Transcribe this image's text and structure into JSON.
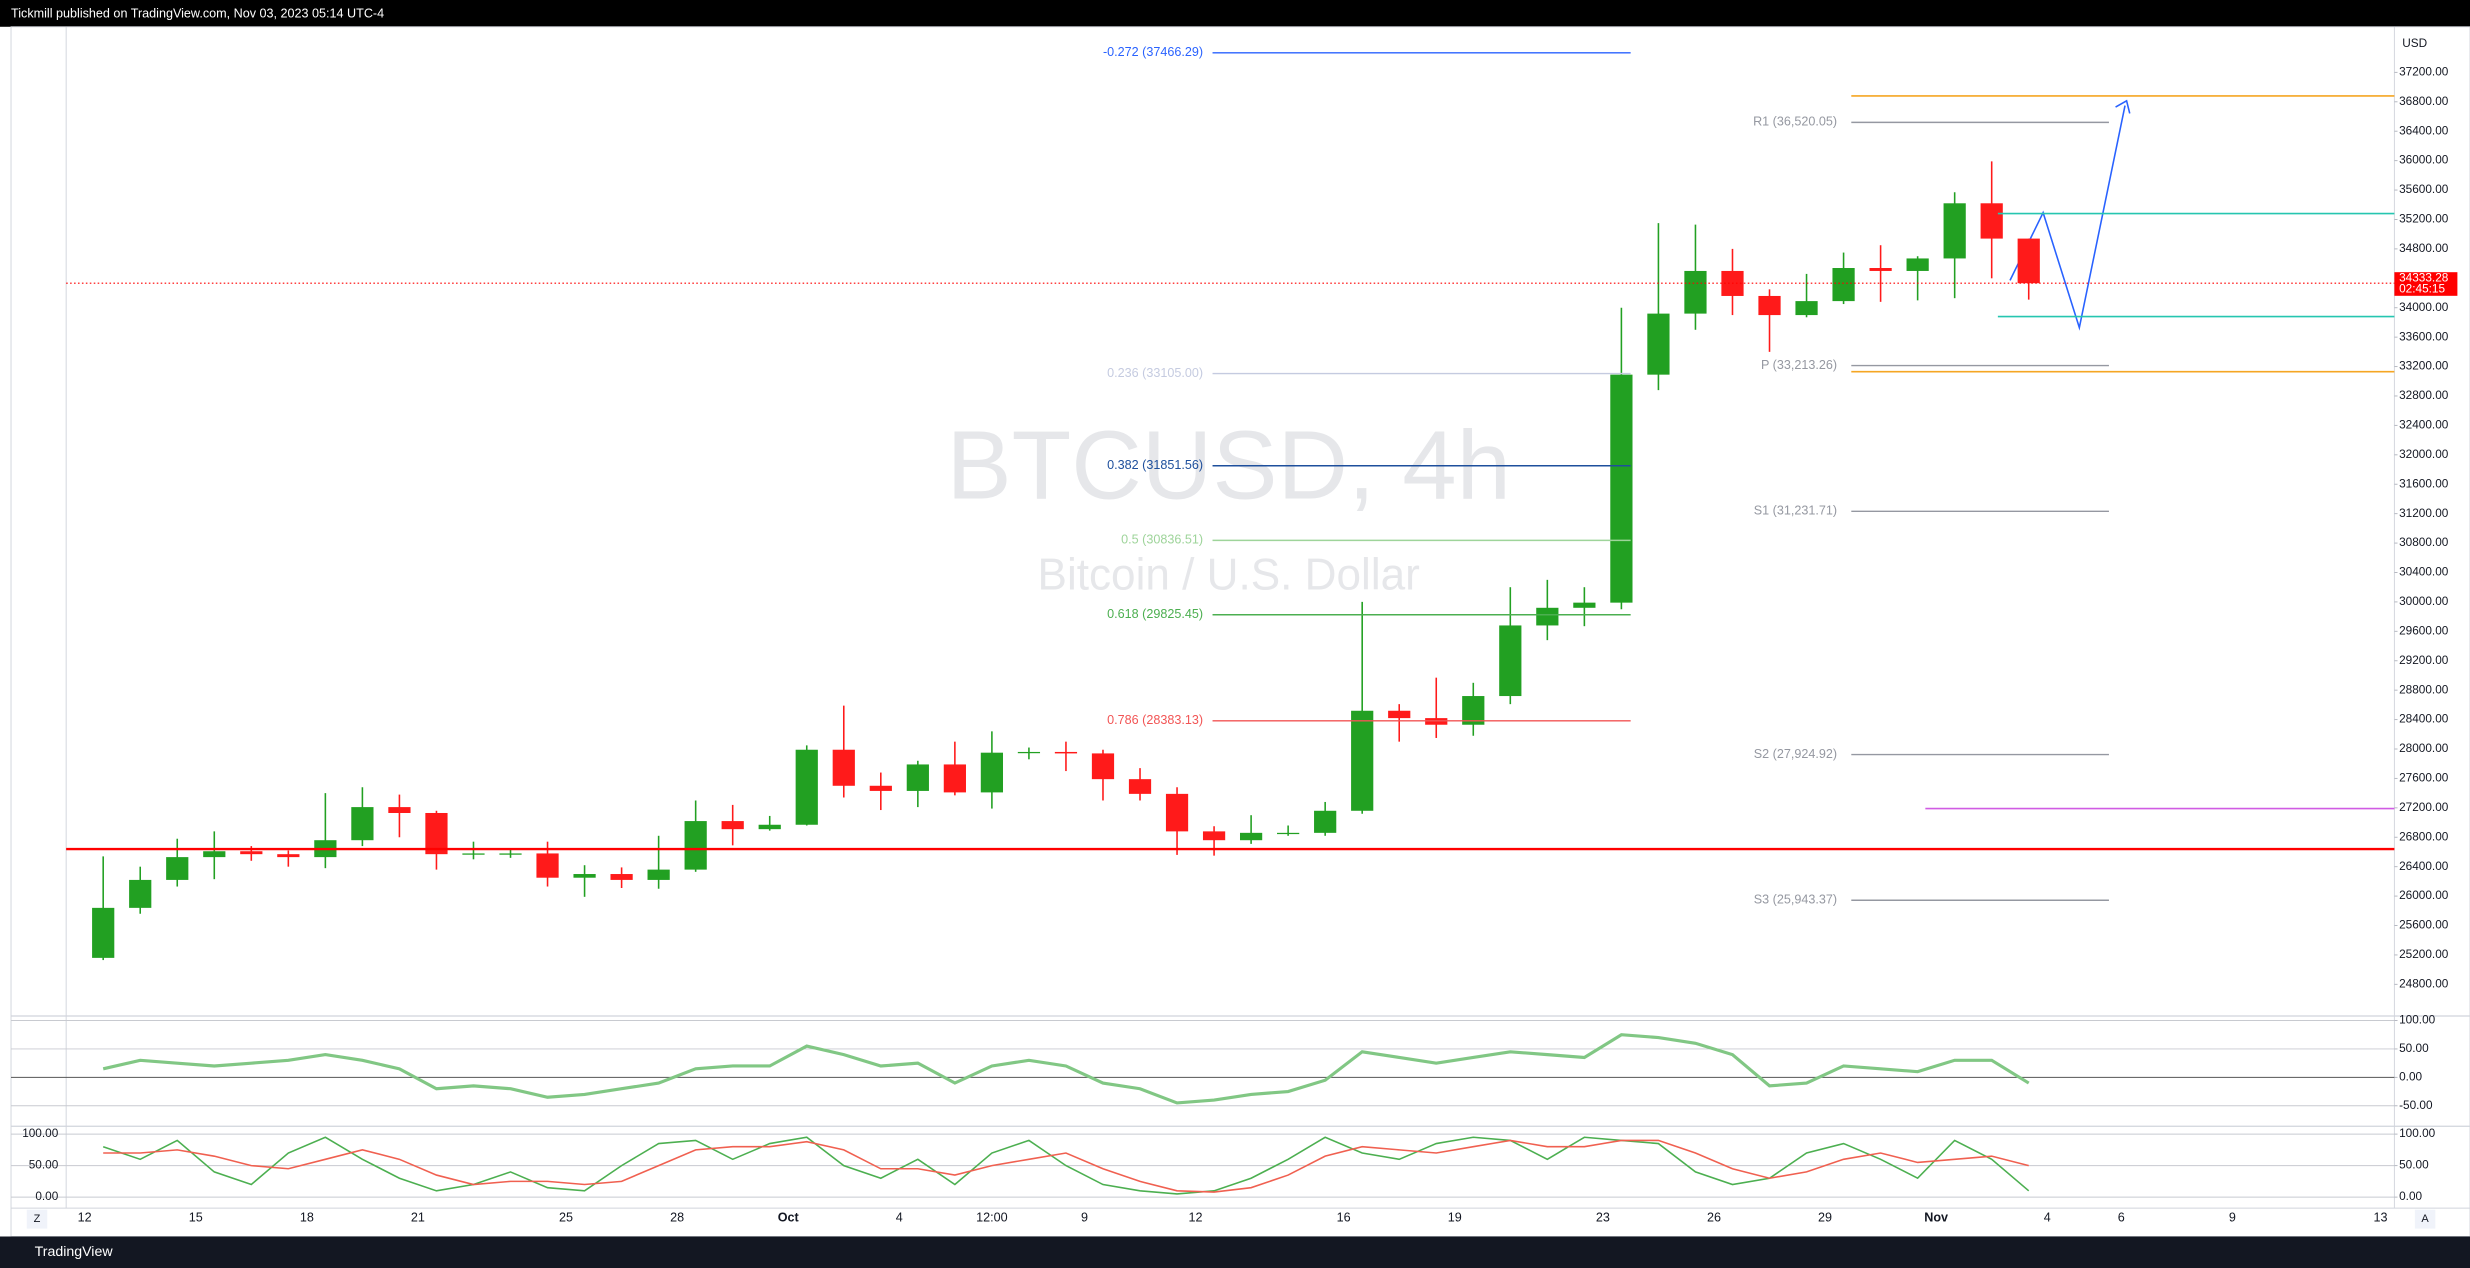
{
  "header": {
    "text": "Tickmill published on TradingView.com, Nov 03, 2023 05:14 UTC-4"
  },
  "footer": {
    "brand": "TradingView"
  },
  "controls": {
    "left": "Z",
    "right": "A"
  },
  "chart_data": [
    {
      "type": "candlestick",
      "title": "BTCUSD, 4h",
      "subtitle": "Bitcoin / U.S. Dollar",
      "currency": "USD",
      "up_color": "#22a022",
      "down_color": "#ff1a1a",
      "grid": false,
      "x": [
        "2023-09-12",
        "2023-09-13",
        "2023-09-14",
        "2023-09-15",
        "2023-09-16",
        "2023-09-17",
        "2023-09-18",
        "2023-09-19",
        "2023-09-20",
        "2023-09-21",
        "2023-09-22",
        "2023-09-23",
        "2023-09-24",
        "2023-09-25",
        "2023-09-26",
        "2023-09-27",
        "2023-09-28",
        "2023-09-29",
        "2023-09-30",
        "2023-10-01",
        "2023-10-02",
        "2023-10-03",
        "2023-10-04",
        "2023-10-05",
        "2023-10-06",
        "2023-10-07",
        "2023-10-08",
        "2023-10-09",
        "2023-10-10",
        "2023-10-11",
        "2023-10-12",
        "2023-10-13",
        "2023-10-14",
        "2023-10-15",
        "2023-10-16",
        "2023-10-17",
        "2023-10-18",
        "2023-10-19",
        "2023-10-20",
        "2023-10-21",
        "2023-10-22",
        "2023-10-23",
        "2023-10-24",
        "2023-10-25",
        "2023-10-26",
        "2023-10-27",
        "2023-10-28",
        "2023-10-29",
        "2023-10-30",
        "2023-10-31",
        "2023-11-01",
        "2023-11-02",
        "2023-11-03"
      ],
      "open": [
        25160,
        25840,
        26220,
        26530,
        26610,
        26570,
        26530,
        26760,
        27210,
        27130,
        26570,
        26580,
        26580,
        26250,
        26300,
        26220,
        26360,
        27020,
        26910,
        26970,
        27990,
        27500,
        27430,
        27790,
        27410,
        27950,
        27960,
        27940,
        27590,
        27390,
        26880,
        26760,
        26860,
        26860,
        27160,
        28520,
        28420,
        28330,
        28720,
        29680,
        29920,
        29990,
        33090,
        33920,
        34500,
        34160,
        33900,
        34090,
        34540,
        34500,
        34670,
        35420,
        34940
      ],
      "high": [
        26540,
        26400,
        26780,
        26880,
        26680,
        26620,
        27400,
        27480,
        27380,
        27160,
        26740,
        26630,
        26740,
        26420,
        26390,
        26820,
        27300,
        27240,
        27090,
        28050,
        28590,
        27680,
        27840,
        28100,
        28240,
        28020,
        28100,
        27990,
        27740,
        27480,
        26950,
        27100,
        26960,
        27280,
        30000,
        28610,
        28970,
        28900,
        30200,
        30300,
        30200,
        34000,
        35150,
        35130,
        34800,
        34250,
        34460,
        34750,
        34850,
        34700,
        35570,
        35990,
        34940
      ],
      "low": [
        25130,
        25760,
        26130,
        26230,
        26480,
        26400,
        26380,
        26680,
        26800,
        26360,
        26500,
        26520,
        26130,
        25990,
        26110,
        26100,
        26330,
        26690,
        26890,
        26960,
        27340,
        27170,
        27210,
        27370,
        27190,
        27860,
        27700,
        27300,
        27300,
        26560,
        26550,
        26710,
        26820,
        26820,
        27120,
        28100,
        28150,
        28180,
        28610,
        29480,
        29670,
        29900,
        32880,
        33700,
        33900,
        33400,
        33870,
        34050,
        34080,
        34100,
        34130,
        34400,
        34110
      ],
      "close": [
        25840,
        26220,
        26530,
        26610,
        26570,
        26530,
        26760,
        27210,
        27130,
        26570,
        26580,
        26580,
        26250,
        26300,
        26220,
        26360,
        27020,
        26910,
        26970,
        27990,
        27500,
        27430,
        27790,
        27410,
        27950,
        27960,
        27940,
        27590,
        27390,
        26880,
        26760,
        26860,
        26860,
        27160,
        28520,
        28420,
        28330,
        28720,
        29680,
        29920,
        29990,
        33090,
        33920,
        34500,
        34160,
        33900,
        34090,
        34540,
        34500,
        34670,
        35420,
        34940,
        34333.28
      ],
      "xlim": [
        "2023-09-11 12:00",
        "2023-11-13 09:00"
      ],
      "xticks": [
        {
          "value": "2023-09-12",
          "label": "12"
        },
        {
          "value": "2023-09-15",
          "label": "15"
        },
        {
          "value": "2023-09-18",
          "label": "18"
        },
        {
          "value": "2023-09-21",
          "label": "21"
        },
        {
          "value": "2023-09-25",
          "label": "25"
        },
        {
          "value": "2023-09-28",
          "label": "28"
        },
        {
          "value": "2023-10-01",
          "label": "Oct"
        },
        {
          "value": "2023-10-04",
          "label": "4"
        },
        {
          "value": "2023-10-06 12:00",
          "label": "12:00"
        },
        {
          "value": "2023-10-09",
          "label": "9"
        },
        {
          "value": "2023-10-12",
          "label": "12"
        },
        {
          "value": "2023-10-16",
          "label": "16"
        },
        {
          "value": "2023-10-19",
          "label": "19"
        },
        {
          "value": "2023-10-23",
          "label": "23"
        },
        {
          "value": "2023-10-26",
          "label": "26"
        },
        {
          "value": "2023-10-29",
          "label": "29"
        },
        {
          "value": "2023-11-01",
          "label": "Nov"
        },
        {
          "value": "2023-11-04",
          "label": "4"
        },
        {
          "value": "2023-11-06",
          "label": "6"
        },
        {
          "value": "2023-11-09",
          "label": "9"
        },
        {
          "value": "2023-11-13",
          "label": "13"
        }
      ],
      "ylim": [
        24370,
        37820
      ],
      "yticks": [
        {
          "value": 24800,
          "label": "24800.00"
        },
        {
          "value": 25200,
          "label": "25200.00"
        },
        {
          "value": 25600,
          "label": "25600.00"
        },
        {
          "value": 26000,
          "label": "26000.00"
        },
        {
          "value": 26400,
          "label": "26400.00"
        },
        {
          "value": 26800,
          "label": "26800.00"
        },
        {
          "value": 27200,
          "label": "27200.00"
        },
        {
          "value": 27600,
          "label": "27600.00"
        },
        {
          "value": 28000,
          "label": "28000.00"
        },
        {
          "value": 28400,
          "label": "28400.00"
        },
        {
          "value": 28800,
          "label": "28800.00"
        },
        {
          "value": 29200,
          "label": "29200.00"
        },
        {
          "value": 29600,
          "label": "29600.00"
        },
        {
          "value": 30000,
          "label": "30000.00"
        },
        {
          "value": 30400,
          "label": "30400.00"
        },
        {
          "value": 30800,
          "label": "30800.00"
        },
        {
          "value": 31200,
          "label": "31200.00"
        },
        {
          "value": 31600,
          "label": "31600.00"
        },
        {
          "value": 32000,
          "label": "32000.00"
        },
        {
          "value": 32400,
          "label": "32400.00"
        },
        {
          "value": 32800,
          "label": "32800.00"
        },
        {
          "value": 33200,
          "label": "33200.00"
        },
        {
          "value": 33600,
          "label": "33600.00"
        },
        {
          "value": 34000,
          "label": "34000.00"
        },
        {
          "value": 34400,
          "label": "34400.00"
        },
        {
          "value": 34800,
          "label": "34800.00"
        },
        {
          "value": 35200,
          "label": "35200.00"
        },
        {
          "value": 35600,
          "label": "35600.00"
        },
        {
          "value": 36000,
          "label": "36000.00"
        },
        {
          "value": 36400,
          "label": "36400.00"
        },
        {
          "value": 36800,
          "label": "36800.00"
        },
        {
          "value": 37200,
          "label": "37200.00"
        }
      ],
      "last_price": 34333.28,
      "last_color": "#ff0000",
      "countdown": "02:45:15",
      "fib": {
        "x": [
          "2023-10-12 11:00",
          "2023-10-23 18:00"
        ],
        "levels": [
          {
            "label": "-0.272 (37466.29)",
            "value": 37466.29,
            "color": "#2962ff"
          },
          {
            "label": "0.236 (33105.00)",
            "value": 33105.0,
            "color": "#c5cbe0"
          },
          {
            "label": "0.382 (31851.56)",
            "value": 31851.56,
            "color": "#1e4f9c"
          },
          {
            "label": "0.5 (30836.51)",
            "value": 30836.51,
            "color": "#9ed49a"
          },
          {
            "label": "0.618 (29825.45)",
            "value": 29825.45,
            "color": "#4caf50"
          },
          {
            "label": "0.786 (28383.13)",
            "value": 28383.13,
            "color": "#f25555"
          }
        ]
      },
      "pivots": {
        "x": [
          "2023-10-29 17:00",
          "2023-11-05 16:00"
        ],
        "color": "#9598a1",
        "levels": [
          {
            "label": "R1 (36,520.05)",
            "value": 36520.05
          },
          {
            "label": "P (33,213.26)",
            "value": 33213.26
          },
          {
            "label": "S1 (31,231.71)",
            "value": 31231.71
          },
          {
            "label": "S2 (27,924.92)",
            "value": 27924.92
          },
          {
            "label": "S3 (25,943.37)",
            "value": 25943.37
          }
        ]
      },
      "lines": [
        {
          "value": 36880,
          "color": "#f5a623",
          "x": [
            "2023-10-29 17:00",
            "2023-11-13 09:00"
          ],
          "width": 1,
          "style": "solid"
        },
        {
          "value": 33130,
          "color": "#f5a623",
          "x": [
            "2023-10-29 17:00",
            "2023-11-13 09:00"
          ],
          "width": 1,
          "style": "solid"
        },
        {
          "value": 35280,
          "color": "#26c6b0",
          "x": [
            "2023-11-02 16:00",
            "2023-11-13 09:00"
          ],
          "width": 1,
          "style": "solid"
        },
        {
          "value": 33880,
          "color": "#26c6b0",
          "x": [
            "2023-11-02 16:00",
            "2023-11-13 09:00"
          ],
          "width": 1,
          "style": "solid"
        },
        {
          "value": 27190,
          "color": "#d05ce3",
          "x": [
            "2023-10-31 17:00",
            "2023-11-13 09:00"
          ],
          "width": 1,
          "style": "solid"
        },
        {
          "value": 26640,
          "color": "#ff0000",
          "x": [
            "2023-09-11 12:00",
            "2023-11-13 09:00"
          ],
          "width": 1.5,
          "style": "solid"
        },
        {
          "value": 34333.28,
          "color": "#ff0000",
          "x": [
            "2023-09-11 12:00",
            "2023-11-13 09:00"
          ],
          "width": 0.7,
          "style": "dotted"
        }
      ]
    },
    {
      "type": "line",
      "grid": true,
      "x": [
        "2023-09-12",
        "2023-09-13",
        "2023-09-14",
        "2023-09-15",
        "2023-09-16",
        "2023-09-17",
        "2023-09-18",
        "2023-09-19",
        "2023-09-20",
        "2023-09-21",
        "2023-09-22",
        "2023-09-23",
        "2023-09-24",
        "2023-09-25",
        "2023-09-26",
        "2023-09-27",
        "2023-09-28",
        "2023-09-29",
        "2023-09-30",
        "2023-10-01",
        "2023-10-02",
        "2023-10-03",
        "2023-10-04",
        "2023-10-05",
        "2023-10-06",
        "2023-10-07",
        "2023-10-08",
        "2023-10-09",
        "2023-10-10",
        "2023-10-11",
        "2023-10-12",
        "2023-10-13",
        "2023-10-14",
        "2023-10-15",
        "2023-10-16",
        "2023-10-17",
        "2023-10-18",
        "2023-10-19",
        "2023-10-20",
        "2023-10-21",
        "2023-10-22",
        "2023-10-23",
        "2023-10-24",
        "2023-10-25",
        "2023-10-26",
        "2023-10-27",
        "2023-10-28",
        "2023-10-29",
        "2023-10-30",
        "2023-10-31",
        "2023-11-01",
        "2023-11-02",
        "2023-11-03"
      ],
      "xlim": [
        "2023-09-11 12:00",
        "2023-11-13 09:00"
      ],
      "ylim": [
        -86,
        108
      ],
      "yticks": [
        {
          "value": 100,
          "label": "100.00"
        },
        {
          "value": 50,
          "label": "50.00"
        },
        {
          "value": 0,
          "label": "0.00"
        },
        {
          "value": -50,
          "label": "-50.00"
        }
      ],
      "series": [
        {
          "color": "#81c784",
          "values": [
            15,
            30,
            25,
            20,
            25,
            30,
            40,
            30,
            15,
            -20,
            -15,
            -20,
            -35,
            -30,
            -20,
            -10,
            15,
            20,
            20,
            55,
            40,
            20,
            25,
            -10,
            20,
            30,
            20,
            -10,
            -20,
            -45,
            -40,
            -30,
            -25,
            -5,
            45,
            35,
            25,
            35,
            45,
            40,
            35,
            75,
            70,
            60,
            40,
            -15,
            -10,
            20,
            15,
            10,
            30,
            30,
            -10
          ]
        }
      ]
    },
    {
      "type": "line",
      "grid": true,
      "x": [
        "2023-09-12",
        "2023-09-13",
        "2023-09-14",
        "2023-09-15",
        "2023-09-16",
        "2023-09-17",
        "2023-09-18",
        "2023-09-19",
        "2023-09-20",
        "2023-09-21",
        "2023-09-22",
        "2023-09-23",
        "2023-09-24",
        "2023-09-25",
        "2023-09-26",
        "2023-09-27",
        "2023-09-28",
        "2023-09-29",
        "2023-09-30",
        "2023-10-01",
        "2023-10-02",
        "2023-10-03",
        "2023-10-04",
        "2023-10-05",
        "2023-10-06",
        "2023-10-07",
        "2023-10-08",
        "2023-10-09",
        "2023-10-10",
        "2023-10-11",
        "2023-10-12",
        "2023-10-13",
        "2023-10-14",
        "2023-10-15",
        "2023-10-16",
        "2023-10-17",
        "2023-10-18",
        "2023-10-19",
        "2023-10-20",
        "2023-10-21",
        "2023-10-22",
        "2023-10-23",
        "2023-10-24",
        "2023-10-25",
        "2023-10-26",
        "2023-10-27",
        "2023-10-28",
        "2023-10-29",
        "2023-10-30",
        "2023-10-31",
        "2023-11-01",
        "2023-11-02",
        "2023-11-03"
      ],
      "xlim": [
        "2023-09-11 12:00",
        "2023-11-13 09:00"
      ],
      "ylim": [
        -17.5,
        112.5
      ],
      "yticks": [
        {
          "value": 100,
          "label": "100.00"
        },
        {
          "value": 50,
          "label": "50.00"
        },
        {
          "value": 0,
          "label": "0.00"
        }
      ],
      "series": [
        {
          "color": "#4caf50",
          "values": [
            80,
            60,
            90,
            40,
            20,
            70,
            95,
            60,
            30,
            10,
            20,
            40,
            15,
            10,
            50,
            85,
            90,
            60,
            85,
            95,
            50,
            30,
            60,
            20,
            70,
            90,
            50,
            20,
            10,
            5,
            10,
            30,
            60,
            95,
            70,
            60,
            85,
            95,
            90,
            60,
            95,
            90,
            85,
            40,
            20,
            30,
            70,
            85,
            60,
            30,
            90,
            60,
            10
          ]
        },
        {
          "color": "#f06050",
          "values": [
            70,
            70,
            75,
            65,
            50,
            45,
            60,
            75,
            60,
            35,
            20,
            25,
            25,
            20,
            25,
            50,
            75,
            80,
            80,
            88,
            75,
            45,
            45,
            35,
            50,
            60,
            70,
            45,
            25,
            10,
            8,
            15,
            35,
            65,
            80,
            75,
            70,
            80,
            90,
            80,
            80,
            90,
            90,
            70,
            45,
            30,
            40,
            60,
            70,
            55,
            60,
            65,
            50
          ]
        }
      ]
    }
  ]
}
